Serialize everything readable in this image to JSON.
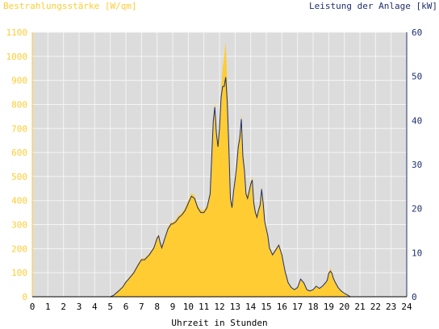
{
  "colors": {
    "irradiance": "#FFCC33",
    "power": "#1F2F6F",
    "plot_bg": "#DCDCDC",
    "grid": "#F5F5F5",
    "left_axis_text": "#FFCC33",
    "right_axis_text": "#1F2F6F",
    "x_axis_text": "#000000"
  },
  "chart_data": {
    "type": "area",
    "title_left": "Bestrahlungsstärke [W/qm]",
    "title_right": "Leistung der Anlage [kW]",
    "xlabel": "Uhrzeit in Stunden",
    "xlim": [
      0,
      24
    ],
    "ylim_left": [
      0,
      1100
    ],
    "ylim_right": [
      0,
      60
    ],
    "grid": true,
    "x_ticks": [
      "0",
      "1",
      "2",
      "3",
      "4",
      "5",
      "6",
      "7",
      "8",
      "9",
      "10",
      "11",
      "12",
      "13",
      "14",
      "15",
      "16",
      "17",
      "18",
      "19",
      "20",
      "21",
      "22",
      "23",
      "24"
    ],
    "y_ticks_left": [
      "0",
      "100",
      "200",
      "300",
      "400",
      "500",
      "600",
      "700",
      "800",
      "900",
      "1000",
      "1100"
    ],
    "y_ticks_right": [
      "0",
      "10",
      "20",
      "30",
      "40",
      "50",
      "60"
    ],
    "x": [
      0,
      5.0,
      5.2,
      5.5,
      5.8,
      6.0,
      6.2,
      6.5,
      6.8,
      7.0,
      7.2,
      7.5,
      7.8,
      8.0,
      8.1,
      8.2,
      8.3,
      8.5,
      8.7,
      8.9,
      9.0,
      9.2,
      9.4,
      9.6,
      9.8,
      10.0,
      10.2,
      10.4,
      10.6,
      10.8,
      11.0,
      11.2,
      11.4,
      11.6,
      11.7,
      11.8,
      11.9,
      12.0,
      12.1,
      12.2,
      12.3,
      12.4,
      12.5,
      12.6,
      12.7,
      12.8,
      12.9,
      13.0,
      13.1,
      13.2,
      13.3,
      13.4,
      13.5,
      13.6,
      13.7,
      13.8,
      13.9,
      14.0,
      14.1,
      14.2,
      14.3,
      14.4,
      14.5,
      14.6,
      14.7,
      14.8,
      14.9,
      15.0,
      15.1,
      15.2,
      15.4,
      15.6,
      15.8,
      16.0,
      16.2,
      16.4,
      16.6,
      16.8,
      17.0,
      17.2,
      17.4,
      17.6,
      17.8,
      18.0,
      18.2,
      18.4,
      18.6,
      18.8,
      18.9,
      19.0,
      19.1,
      19.2,
      19.3,
      19.4,
      19.6,
      19.8,
      20.0,
      20.2,
      20.4,
      21,
      24
    ],
    "series": [
      {
        "values": [
          0,
          0,
          8,
          25,
          45,
          65,
          80,
          105,
          140,
          160,
          160,
          180,
          210,
          250,
          260,
          230,
          210,
          250,
          290,
          310,
          310,
          320,
          340,
          350,
          370,
          400,
          430,
          420,
          380,
          360,
          360,
          380,
          440,
          750,
          810,
          700,
          640,
          720,
          850,
          950,
          1000,
          1060,
          880,
          640,
          420,
          380,
          450,
          500,
          560,
          640,
          680,
          760,
          600,
          540,
          440,
          420,
          450,
          480,
          500,
          400,
          360,
          340,
          370,
          390,
          460,
          400,
          320,
          290,
          260,
          210,
          180,
          200,
          220,
          180,
          110,
          60,
          40,
          30,
          40,
          75,
          60,
          30,
          25,
          30,
          45,
          35,
          45,
          60,
          70,
          100,
          120,
          105,
          80,
          65,
          40,
          25,
          15,
          8,
          0,
          0,
          0
        ]
      },
      {
        "values": [
          0,
          0,
          0.3,
          1.2,
          2.2,
          3.3,
          4.1,
          5.4,
          7.3,
          8.4,
          8.4,
          9.5,
          11.1,
          13.3,
          13.8,
          12.2,
          11.1,
          13.3,
          15.4,
          16.5,
          16.5,
          17.0,
          18.0,
          18.6,
          19.6,
          21.2,
          22.8,
          22.3,
          20.2,
          19.1,
          19.1,
          20.2,
          23.3,
          39.8,
          43.0,
          37.1,
          34.0,
          38.2,
          45.1,
          47.7,
          47.7,
          49.8,
          44.0,
          33.9,
          22.3,
          20.2,
          23.9,
          26.5,
          29.7,
          33.9,
          36.0,
          40.3,
          31.8,
          28.6,
          23.3,
          22.3,
          23.9,
          25.5,
          26.5,
          21.2,
          19.1,
          18.0,
          19.6,
          20.7,
          24.4,
          21.2,
          17.0,
          15.4,
          13.8,
          11.1,
          9.5,
          10.6,
          11.7,
          9.5,
          5.8,
          3.2,
          2.1,
          1.6,
          2.1,
          4.0,
          3.2,
          1.6,
          1.3,
          1.6,
          2.4,
          1.9,
          2.4,
          3.2,
          3.7,
          5.3,
          5.8,
          5.4,
          4.2,
          3.4,
          2.1,
          1.3,
          0.8,
          0.4,
          0,
          0,
          0
        ]
      }
    ]
  }
}
